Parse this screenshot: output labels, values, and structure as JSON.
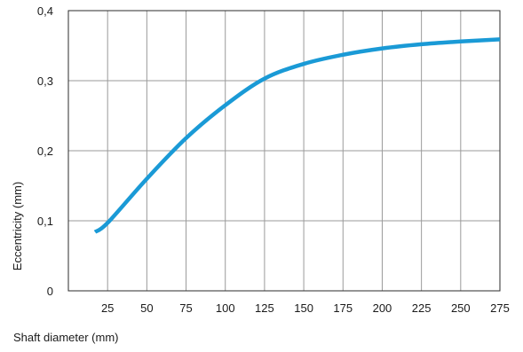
{
  "chart_data": {
    "type": "line",
    "xlabel": "Shaft diameter  (mm)",
    "ylabel": "Eccentricity  (mm)",
    "xlim": [
      0,
      275
    ],
    "ylim": [
      0,
      0.4
    ],
    "x_ticks": [
      25,
      50,
      75,
      100,
      125,
      150,
      175,
      200,
      225,
      250,
      275
    ],
    "x_tick_labels": [
      "25",
      "50",
      "75",
      "100",
      "125",
      "150",
      "175",
      "200",
      "225",
      "250",
      "275"
    ],
    "y_ticks": [
      0,
      0.1,
      0.2,
      0.3,
      0.4
    ],
    "y_tick_labels": [
      "0",
      "0,1",
      "0,2",
      "0,3",
      "0,4"
    ],
    "grid": true,
    "series": [
      {
        "color": "#1a9ad6",
        "x": [
          17,
          25,
          50,
          75,
          100,
          125,
          150,
          175,
          200,
          225,
          250,
          275
        ],
        "y": [
          0.084,
          0.097,
          0.16,
          0.218,
          0.265,
          0.303,
          0.324,
          0.337,
          0.346,
          0.352,
          0.356,
          0.359
        ]
      }
    ]
  }
}
